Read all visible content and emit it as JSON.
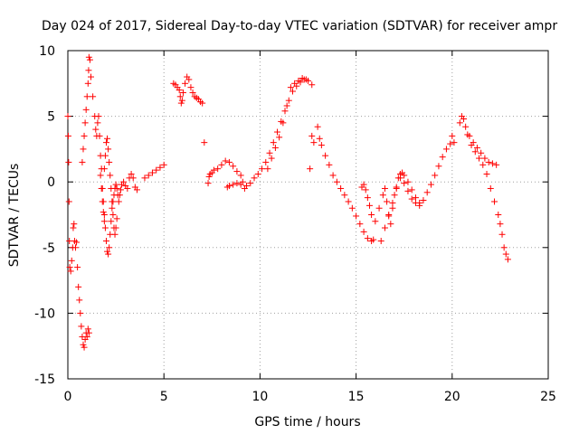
{
  "chart_data": {
    "type": "scatter",
    "title": "Day 024 of 2017, Sidereal Day-to-day VTEC variation (SDTVAR) for receiver ampr",
    "xlabel": "GPS time / hours",
    "ylabel": "SDTVAR / TECUs",
    "xlim": [
      0,
      25
    ],
    "ylim": [
      -15,
      10
    ],
    "xticks": [
      "0",
      "5",
      "10",
      "15",
      "20",
      "25"
    ],
    "yticks": [
      "10",
      "5",
      "0",
      "-5",
      "-10",
      "-15"
    ],
    "grid": true,
    "marker": "+",
    "color": "#ff0000",
    "series": [
      {
        "name": "SDTVAR",
        "points": [
          [
            0.0,
            5.0
          ],
          [
            0.02,
            3.5
          ],
          [
            0.04,
            1.5
          ],
          [
            0.06,
            -1.5
          ],
          [
            0.08,
            -4.5
          ],
          [
            0.1,
            -6.5
          ],
          [
            0.15,
            -6.8
          ],
          [
            0.2,
            -6.0
          ],
          [
            0.25,
            -5.0
          ],
          [
            0.28,
            -3.5
          ],
          [
            0.32,
            -3.2
          ],
          [
            0.35,
            -4.5
          ],
          [
            0.4,
            -5.0
          ],
          [
            0.45,
            -4.6
          ],
          [
            0.5,
            -6.5
          ],
          [
            0.55,
            -8.0
          ],
          [
            0.6,
            -9.0
          ],
          [
            0.65,
            -10.0
          ],
          [
            0.7,
            -11.0
          ],
          [
            0.75,
            -11.8
          ],
          [
            0.8,
            -12.4
          ],
          [
            0.85,
            -12.6
          ],
          [
            0.9,
            -12.0
          ],
          [
            0.95,
            -11.5
          ],
          [
            1.0,
            -11.8
          ],
          [
            1.05,
            -11.2
          ],
          [
            1.1,
            -11.5
          ],
          [
            0.75,
            1.5
          ],
          [
            0.8,
            2.5
          ],
          [
            0.85,
            3.5
          ],
          [
            0.9,
            4.5
          ],
          [
            0.95,
            5.5
          ],
          [
            1.0,
            6.5
          ],
          [
            1.05,
            7.5
          ],
          [
            1.08,
            8.5
          ],
          [
            1.1,
            9.5
          ],
          [
            1.15,
            9.3
          ],
          [
            1.2,
            8.0
          ],
          [
            1.3,
            6.5
          ],
          [
            1.4,
            5.0
          ],
          [
            1.45,
            4.0
          ],
          [
            1.5,
            3.5
          ],
          [
            1.55,
            4.5
          ],
          [
            1.6,
            5.0
          ],
          [
            1.65,
            3.5
          ],
          [
            1.7,
            2.0
          ],
          [
            1.75,
            1.0
          ],
          [
            1.8,
            -0.5
          ],
          [
            1.85,
            -1.5
          ],
          [
            1.9,
            -2.5
          ],
          [
            1.95,
            -3.5
          ],
          [
            2.0,
            -4.5
          ],
          [
            2.05,
            -5.3
          ],
          [
            2.1,
            -5.5
          ],
          [
            2.15,
            -5.0
          ],
          [
            2.2,
            -4.0
          ],
          [
            2.25,
            -3.0
          ],
          [
            2.3,
            -2.0
          ],
          [
            2.35,
            -1.5
          ],
          [
            2.4,
            -1.0
          ],
          [
            2.45,
            -0.5
          ],
          [
            2.5,
            -0.2
          ],
          [
            2.55,
            -0.5
          ],
          [
            2.6,
            -1.0
          ],
          [
            2.65,
            -1.5
          ],
          [
            2.7,
            -1.0
          ],
          [
            2.75,
            -0.6
          ],
          [
            2.8,
            -0.2
          ],
          [
            2.9,
            0.0
          ],
          [
            3.0,
            -0.3
          ],
          [
            3.1,
            -0.5
          ],
          [
            3.2,
            0.3
          ],
          [
            3.3,
            0.6
          ],
          [
            3.4,
            0.3
          ],
          [
            3.5,
            -0.4
          ],
          [
            3.6,
            -0.6
          ],
          [
            1.9,
            1.0
          ],
          [
            1.95,
            2.0
          ],
          [
            2.0,
            3.0
          ],
          [
            2.05,
            3.3
          ],
          [
            2.1,
            2.5
          ],
          [
            2.15,
            1.5
          ],
          [
            2.2,
            0.5
          ],
          [
            2.25,
            -0.5
          ],
          [
            2.3,
            -1.5
          ],
          [
            2.35,
            -2.5
          ],
          [
            2.4,
            -3.5
          ],
          [
            2.45,
            -4.0
          ],
          [
            2.5,
            -3.5
          ],
          [
            2.55,
            -2.8
          ],
          [
            1.7,
            0.5
          ],
          [
            1.75,
            -0.5
          ],
          [
            1.8,
            -1.5
          ],
          [
            1.85,
            -2.3
          ],
          [
            1.9,
            -3.0
          ],
          [
            4.0,
            0.3
          ],
          [
            4.2,
            0.5
          ],
          [
            4.4,
            0.7
          ],
          [
            4.6,
            0.9
          ],
          [
            4.8,
            1.1
          ],
          [
            5.0,
            1.3
          ],
          [
            5.5,
            7.5
          ],
          [
            5.6,
            7.4
          ],
          [
            5.7,
            7.2
          ],
          [
            5.8,
            7.0
          ],
          [
            5.85,
            6.5
          ],
          [
            5.9,
            6.0
          ],
          [
            5.95,
            6.2
          ],
          [
            6.0,
            6.8
          ],
          [
            6.1,
            7.5
          ],
          [
            6.2,
            8.0
          ],
          [
            6.3,
            7.8
          ],
          [
            6.4,
            7.2
          ],
          [
            6.5,
            6.8
          ],
          [
            6.6,
            6.5
          ],
          [
            6.7,
            6.4
          ],
          [
            6.8,
            6.3
          ],
          [
            6.9,
            6.1
          ],
          [
            7.0,
            6.0
          ],
          [
            7.1,
            3.0
          ],
          [
            7.3,
            -0.1
          ],
          [
            7.35,
            0.4
          ],
          [
            7.4,
            0.6
          ],
          [
            7.5,
            0.7
          ],
          [
            7.6,
            0.9
          ],
          [
            7.8,
            1.0
          ],
          [
            8.0,
            1.3
          ],
          [
            8.2,
            1.6
          ],
          [
            8.4,
            1.5
          ],
          [
            8.6,
            1.2
          ],
          [
            8.8,
            0.8
          ],
          [
            9.0,
            0.5
          ],
          [
            9.1,
            0.0
          ],
          [
            9.2,
            -0.5
          ],
          [
            8.3,
            -0.4
          ],
          [
            8.4,
            -0.3
          ],
          [
            8.6,
            -0.2
          ],
          [
            8.8,
            -0.1
          ],
          [
            9.0,
            -0.2
          ],
          [
            9.3,
            -0.3
          ],
          [
            9.5,
            -0.1
          ],
          [
            9.7,
            0.3
          ],
          [
            9.9,
            0.6
          ],
          [
            10.1,
            1.0
          ],
          [
            10.3,
            1.5
          ],
          [
            10.5,
            2.2
          ],
          [
            10.7,
            3.0
          ],
          [
            10.9,
            3.8
          ],
          [
            11.1,
            4.6
          ],
          [
            11.3,
            5.4
          ],
          [
            11.5,
            6.2
          ],
          [
            11.7,
            6.9
          ],
          [
            11.9,
            7.3
          ],
          [
            12.1,
            7.6
          ],
          [
            12.3,
            7.8
          ],
          [
            12.5,
            7.7
          ],
          [
            12.7,
            7.4
          ],
          [
            11.6,
            7.2
          ],
          [
            11.8,
            7.5
          ],
          [
            12.0,
            7.7
          ],
          [
            12.2,
            7.9
          ],
          [
            12.4,
            7.8
          ],
          [
            10.4,
            1.0
          ],
          [
            10.6,
            1.8
          ],
          [
            10.8,
            2.6
          ],
          [
            11.0,
            3.4
          ],
          [
            11.2,
            4.5
          ],
          [
            11.4,
            5.8
          ],
          [
            12.6,
            1.0
          ],
          [
            12.7,
            3.5
          ],
          [
            12.8,
            3.0
          ],
          [
            13.0,
            4.2
          ],
          [
            13.1,
            3.3
          ],
          [
            13.2,
            2.8
          ],
          [
            13.4,
            2.0
          ],
          [
            13.6,
            1.3
          ],
          [
            13.8,
            0.5
          ],
          [
            14.0,
            0.0
          ],
          [
            14.2,
            -0.5
          ],
          [
            14.4,
            -1.0
          ],
          [
            14.6,
            -1.5
          ],
          [
            14.8,
            -2.0
          ],
          [
            15.0,
            -2.6
          ],
          [
            15.2,
            -3.2
          ],
          [
            15.4,
            -3.8
          ],
          [
            15.6,
            -4.3
          ],
          [
            15.8,
            -4.5
          ],
          [
            15.9,
            -4.4
          ],
          [
            15.3,
            -0.4
          ],
          [
            15.4,
            -0.2
          ],
          [
            15.5,
            -0.6
          ],
          [
            15.6,
            -1.2
          ],
          [
            15.7,
            -1.8
          ],
          [
            15.8,
            -2.5
          ],
          [
            16.0,
            -3.0
          ],
          [
            16.2,
            -2.0
          ],
          [
            16.4,
            -1.0
          ],
          [
            16.5,
            -0.5
          ],
          [
            16.6,
            -1.5
          ],
          [
            16.7,
            -2.5
          ],
          [
            16.8,
            -3.2
          ],
          [
            16.9,
            -2.0
          ],
          [
            17.0,
            -1.0
          ],
          [
            17.1,
            -0.4
          ],
          [
            17.2,
            0.3
          ],
          [
            17.3,
            0.6
          ],
          [
            17.4,
            0.7
          ],
          [
            17.5,
            0.5
          ],
          [
            17.7,
            0.0
          ],
          [
            17.9,
            -0.6
          ],
          [
            18.1,
            -1.2
          ],
          [
            18.3,
            -1.6
          ],
          [
            16.3,
            -4.5
          ],
          [
            16.5,
            -3.5
          ],
          [
            16.7,
            -2.6
          ],
          [
            16.9,
            -1.6
          ],
          [
            17.1,
            -0.5
          ],
          [
            17.3,
            0.3
          ],
          [
            17.5,
            -0.1
          ],
          [
            17.7,
            -0.7
          ],
          [
            17.9,
            -1.3
          ],
          [
            18.1,
            -1.6
          ],
          [
            18.3,
            -1.8
          ],
          [
            18.5,
            -1.4
          ],
          [
            18.7,
            -0.8
          ],
          [
            18.9,
            -0.2
          ],
          [
            19.1,
            0.5
          ],
          [
            19.3,
            1.2
          ],
          [
            19.5,
            1.9
          ],
          [
            19.7,
            2.5
          ],
          [
            19.9,
            2.9
          ],
          [
            20.0,
            3.5
          ],
          [
            20.1,
            3.0
          ],
          [
            20.4,
            4.5
          ],
          [
            20.5,
            5.0
          ],
          [
            20.6,
            4.8
          ],
          [
            20.7,
            4.2
          ],
          [
            20.8,
            3.6
          ],
          [
            21.0,
            2.8
          ],
          [
            21.2,
            2.3
          ],
          [
            21.4,
            1.8
          ],
          [
            21.6,
            1.3
          ],
          [
            21.8,
            0.6
          ],
          [
            22.0,
            -0.5
          ],
          [
            22.2,
            -1.5
          ],
          [
            22.4,
            -2.5
          ],
          [
            22.5,
            -3.2
          ],
          [
            22.6,
            -4.0
          ],
          [
            22.7,
            -5.0
          ],
          [
            22.8,
            -5.5
          ],
          [
            22.9,
            -5.9
          ],
          [
            20.9,
            3.5
          ],
          [
            21.1,
            3.0
          ],
          [
            21.3,
            2.6
          ],
          [
            21.5,
            2.2
          ],
          [
            21.7,
            1.8
          ],
          [
            21.9,
            1.5
          ],
          [
            22.1,
            1.4
          ],
          [
            22.3,
            1.3
          ]
        ]
      }
    ]
  }
}
